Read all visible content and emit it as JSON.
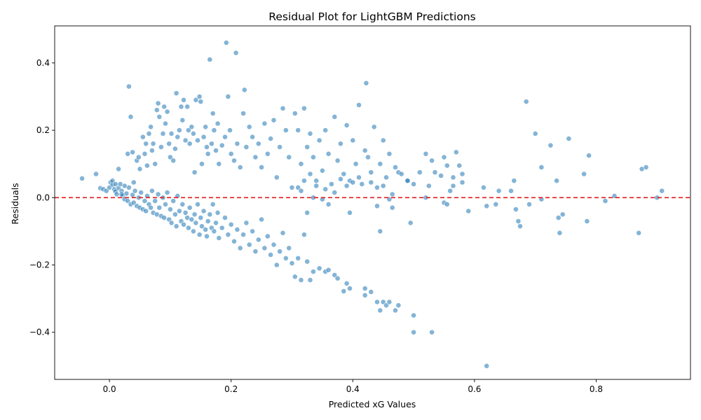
{
  "chart_data": {
    "type": "scatter",
    "title": "Residual Plot for LightGBM Predictions",
    "xlabel": "Predicted xG Values",
    "ylabel": "Residuals",
    "xlim": [
      -0.09,
      0.955
    ],
    "ylim": [
      -0.54,
      0.51
    ],
    "xticks": [
      0.0,
      0.2,
      0.4,
      0.6,
      0.8
    ],
    "xtick_labels": [
      "0.0",
      "0.2",
      "0.4",
      "0.6",
      "0.8"
    ],
    "yticks": [
      -0.4,
      -0.2,
      0.0,
      0.2,
      0.4
    ],
    "ytick_labels": [
      "−0.4",
      "−0.2",
      "0.0",
      "0.2",
      "0.4"
    ],
    "reference_line": {
      "y": 0.0,
      "color": "#e31a1c",
      "style": "dashed"
    },
    "point_color": "#1f77b4",
    "grid": false,
    "legend": "none",
    "points": [
      [
        -0.045,
        0.057
      ],
      [
        -0.022,
        0.07
      ],
      [
        -0.015,
        0.028
      ],
      [
        -0.01,
        0.025
      ],
      [
        -0.005,
        0.02
      ],
      [
        0.0,
        0.03
      ],
      [
        0.002,
        0.045
      ],
      [
        0.005,
        0.038
      ],
      [
        0.008,
        0.025
      ],
      [
        0.01,
        0.018
      ],
      [
        0.012,
        0.01
      ],
      [
        0.015,
        0.028
      ],
      [
        0.018,
        0.04
      ],
      [
        0.02,
        0.02
      ],
      [
        0.022,
        0.005
      ],
      [
        0.025,
        -0.005
      ],
      [
        0.028,
        0.012
      ],
      [
        0.03,
        -0.01
      ],
      [
        0.032,
        0.03
      ],
      [
        0.035,
        -0.02
      ],
      [
        0.038,
        0.008
      ],
      [
        0.04,
        -0.015
      ],
      [
        0.042,
        0.02
      ],
      [
        0.045,
        -0.025
      ],
      [
        0.048,
        0.0
      ],
      [
        0.05,
        -0.03
      ],
      [
        0.052,
        0.015
      ],
      [
        0.055,
        -0.035
      ],
      [
        0.058,
        -0.01
      ],
      [
        0.06,
        -0.04
      ],
      [
        0.062,
        0.005
      ],
      [
        0.065,
        -0.02
      ],
      [
        0.068,
        -0.03
      ],
      [
        0.07,
        0.02
      ],
      [
        0.072,
        -0.045
      ],
      [
        0.075,
        -0.01
      ],
      [
        0.078,
        -0.05
      ],
      [
        0.08,
        0.01
      ],
      [
        0.082,
        -0.03
      ],
      [
        0.085,
        -0.055
      ],
      [
        0.088,
        0.0
      ],
      [
        0.09,
        -0.06
      ],
      [
        0.092,
        -0.02
      ],
      [
        0.095,
        0.015
      ],
      [
        0.098,
        -0.065
      ],
      [
        0.1,
        -0.035
      ],
      [
        0.102,
        -0.075
      ],
      [
        0.105,
        -0.01
      ],
      [
        0.108,
        -0.05
      ],
      [
        0.11,
        -0.085
      ],
      [
        0.112,
        0.005
      ],
      [
        0.115,
        -0.04
      ],
      [
        0.118,
        -0.07
      ],
      [
        0.12,
        -0.02
      ],
      [
        0.122,
        -0.08
      ],
      [
        0.125,
        -0.045
      ],
      [
        0.128,
        -0.06
      ],
      [
        0.13,
        -0.09
      ],
      [
        0.132,
        -0.03
      ],
      [
        0.135,
        -0.065
      ],
      [
        0.138,
        -0.1
      ],
      [
        0.14,
        -0.05
      ],
      [
        0.142,
        -0.075
      ],
      [
        0.145,
        -0.02
      ],
      [
        0.148,
        -0.11
      ],
      [
        0.15,
        -0.06
      ],
      [
        0.152,
        -0.085
      ],
      [
        0.155,
        -0.04
      ],
      [
        0.158,
        -0.095
      ],
      [
        0.16,
        -0.115
      ],
      [
        0.162,
        -0.07
      ],
      [
        0.165,
        -0.05
      ],
      [
        0.168,
        -0.09
      ],
      [
        0.17,
        -0.02
      ],
      [
        0.172,
        -0.1
      ],
      [
        0.175,
        -0.075
      ],
      [
        0.178,
        -0.045
      ],
      [
        0.18,
        -0.12
      ],
      [
        0.185,
        -0.09
      ],
      [
        0.19,
        -0.06
      ],
      [
        0.195,
        -0.11
      ],
      [
        0.2,
        -0.08
      ],
      [
        0.205,
        -0.13
      ],
      [
        0.21,
        -0.095
      ],
      [
        0.215,
        -0.15
      ],
      [
        0.22,
        -0.11
      ],
      [
        0.225,
        -0.075
      ],
      [
        0.23,
        -0.14
      ],
      [
        0.235,
        -0.1
      ],
      [
        0.24,
        -0.16
      ],
      [
        0.245,
        -0.125
      ],
      [
        0.25,
        -0.065
      ],
      [
        0.255,
        -0.15
      ],
      [
        0.26,
        -0.115
      ],
      [
        0.265,
        -0.17
      ],
      [
        0.27,
        -0.14
      ],
      [
        0.275,
        -0.2
      ],
      [
        0.28,
        -0.16
      ],
      [
        0.285,
        -0.105
      ],
      [
        0.29,
        -0.18
      ],
      [
        0.295,
        -0.15
      ],
      [
        0.3,
        -0.195
      ],
      [
        0.305,
        -0.235
      ],
      [
        0.31,
        -0.18
      ],
      [
        0.315,
        -0.245
      ],
      [
        0.32,
        -0.11
      ],
      [
        0.325,
        -0.19
      ],
      [
        0.33,
        -0.245
      ],
      [
        0.335,
        -0.22
      ],
      [
        0.345,
        -0.21
      ],
      [
        0.355,
        -0.22
      ],
      [
        0.36,
        -0.215
      ],
      [
        0.37,
        -0.23
      ],
      [
        0.375,
        -0.24
      ],
      [
        0.385,
        -0.278
      ],
      [
        0.39,
        -0.255
      ],
      [
        0.395,
        -0.27
      ],
      [
        0.42,
        -0.27
      ],
      [
        0.42,
        -0.29
      ],
      [
        0.43,
        -0.28
      ],
      [
        0.44,
        -0.31
      ],
      [
        0.445,
        -0.335
      ],
      [
        0.45,
        -0.31
      ],
      [
        0.455,
        -0.32
      ],
      [
        0.46,
        -0.31
      ],
      [
        0.47,
        -0.335
      ],
      [
        0.475,
        -0.32
      ],
      [
        0.5,
        -0.35
      ],
      [
        0.5,
        -0.4
      ],
      [
        0.53,
        -0.4
      ],
      [
        0.62,
        -0.5
      ],
      [
        0.005,
        0.05
      ],
      [
        0.01,
        0.04
      ],
      [
        0.015,
        0.085
      ],
      [
        0.02,
        0.01
      ],
      [
        0.025,
        0.035
      ],
      [
        0.03,
        0.13
      ],
      [
        0.032,
        0.33
      ],
      [
        0.035,
        0.24
      ],
      [
        0.038,
        0.135
      ],
      [
        0.04,
        0.045
      ],
      [
        0.045,
        0.11
      ],
      [
        0.048,
        0.12
      ],
      [
        0.05,
        0.085
      ],
      [
        0.055,
        0.18
      ],
      [
        0.058,
        0.13
      ],
      [
        0.06,
        0.16
      ],
      [
        0.062,
        0.095
      ],
      [
        0.065,
        0.19
      ],
      [
        0.068,
        0.21
      ],
      [
        0.07,
        0.14
      ],
      [
        0.072,
        0.16
      ],
      [
        0.075,
        0.1
      ],
      [
        0.078,
        0.26
      ],
      [
        0.08,
        0.28
      ],
      [
        0.082,
        0.24
      ],
      [
        0.085,
        0.15
      ],
      [
        0.088,
        0.19
      ],
      [
        0.09,
        0.27
      ],
      [
        0.092,
        0.22
      ],
      [
        0.095,
        0.255
      ],
      [
        0.098,
        0.16
      ],
      [
        0.1,
        0.12
      ],
      [
        0.102,
        0.19
      ],
      [
        0.105,
        0.11
      ],
      [
        0.108,
        0.145
      ],
      [
        0.11,
        0.31
      ],
      [
        0.112,
        0.18
      ],
      [
        0.115,
        0.2
      ],
      [
        0.118,
        0.27
      ],
      [
        0.12,
        0.23
      ],
      [
        0.122,
        0.29
      ],
      [
        0.125,
        0.17
      ],
      [
        0.128,
        0.27
      ],
      [
        0.13,
        0.2
      ],
      [
        0.132,
        0.16
      ],
      [
        0.135,
        0.21
      ],
      [
        0.138,
        0.19
      ],
      [
        0.14,
        0.075
      ],
      [
        0.142,
        0.29
      ],
      [
        0.145,
        0.17
      ],
      [
        0.148,
        0.3
      ],
      [
        0.15,
        0.285
      ],
      [
        0.152,
        0.1
      ],
      [
        0.155,
        0.18
      ],
      [
        0.158,
        0.21
      ],
      [
        0.16,
        0.15
      ],
      [
        0.162,
        0.13
      ],
      [
        0.165,
        0.41
      ],
      [
        0.168,
        0.16
      ],
      [
        0.17,
        0.25
      ],
      [
        0.172,
        0.2
      ],
      [
        0.175,
        0.14
      ],
      [
        0.178,
        0.22
      ],
      [
        0.18,
        0.1
      ],
      [
        0.185,
        0.155
      ],
      [
        0.19,
        0.18
      ],
      [
        0.192,
        0.46
      ],
      [
        0.195,
        0.3
      ],
      [
        0.198,
        0.2
      ],
      [
        0.2,
        0.13
      ],
      [
        0.205,
        0.11
      ],
      [
        0.208,
        0.43
      ],
      [
        0.21,
        0.16
      ],
      [
        0.215,
        0.09
      ],
      [
        0.22,
        0.25
      ],
      [
        0.222,
        0.32
      ],
      [
        0.225,
        0.15
      ],
      [
        0.23,
        0.21
      ],
      [
        0.235,
        0.18
      ],
      [
        0.24,
        0.12
      ],
      [
        0.245,
        0.16
      ],
      [
        0.25,
        0.09
      ],
      [
        0.255,
        0.22
      ],
      [
        0.26,
        0.13
      ],
      [
        0.265,
        0.175
      ],
      [
        0.27,
        0.23
      ],
      [
        0.275,
        0.06
      ],
      [
        0.28,
        0.15
      ],
      [
        0.285,
        0.265
      ],
      [
        0.29,
        0.2
      ],
      [
        0.295,
        0.12
      ],
      [
        0.3,
        0.03
      ],
      [
        0.305,
        0.25
      ],
      [
        0.31,
        0.2
      ],
      [
        0.315,
        0.1
      ],
      [
        0.32,
        0.265
      ],
      [
        0.325,
        0.15
      ],
      [
        0.33,
        0.19
      ],
      [
        0.335,
        0.12
      ],
      [
        0.34,
        0.05
      ],
      [
        0.345,
        0.17
      ],
      [
        0.35,
        0.08
      ],
      [
        0.355,
        0.2
      ],
      [
        0.36,
        0.13
      ],
      [
        0.365,
        0.04
      ],
      [
        0.37,
        0.24
      ],
      [
        0.375,
        0.11
      ],
      [
        0.38,
        0.16
      ],
      [
        0.385,
        0.07
      ],
      [
        0.39,
        0.215
      ],
      [
        0.395,
        0.05
      ],
      [
        0.4,
        0.17
      ],
      [
        0.405,
        0.1
      ],
      [
        0.41,
        0.275
      ],
      [
        0.415,
        0.04
      ],
      [
        0.42,
        0.14
      ],
      [
        0.422,
        0.34
      ],
      [
        0.425,
        0.12
      ],
      [
        0.43,
        0.075
      ],
      [
        0.435,
        0.21
      ],
      [
        0.44,
        0.03
      ],
      [
        0.445,
        0.1
      ],
      [
        0.45,
        0.17
      ],
      [
        0.455,
        0.06
      ],
      [
        0.46,
        0.13
      ],
      [
        0.465,
        0.01
      ],
      [
        0.47,
        0.09
      ],
      [
        0.475,
        0.075
      ],
      [
        0.48,
        0.07
      ],
      [
        0.49,
        0.05
      ],
      [
        0.5,
        0.04
      ],
      [
        0.51,
        0.075
      ],
      [
        0.52,
        0.13
      ],
      [
        0.53,
        0.11
      ],
      [
        0.535,
        0.075
      ],
      [
        0.545,
        0.065
      ],
      [
        0.55,
        0.12
      ],
      [
        0.555,
        0.095
      ],
      [
        0.56,
        0.02
      ],
      [
        0.565,
        0.035
      ],
      [
        0.57,
        0.135
      ],
      [
        0.575,
        0.095
      ],
      [
        0.58,
        0.07
      ],
      [
        0.58,
        0.045
      ],
      [
        0.59,
        -0.04
      ],
      [
        0.615,
        0.03
      ],
      [
        0.62,
        -0.025
      ],
      [
        0.635,
        -0.02
      ],
      [
        0.64,
        0.02
      ],
      [
        0.66,
        0.02
      ],
      [
        0.665,
        0.05
      ],
      [
        0.668,
        -0.035
      ],
      [
        0.672,
        -0.07
      ],
      [
        0.675,
        -0.085
      ],
      [
        0.685,
        0.285
      ],
      [
        0.69,
        -0.02
      ],
      [
        0.7,
        0.19
      ],
      [
        0.71,
        -0.005
      ],
      [
        0.71,
        0.09
      ],
      [
        0.725,
        0.155
      ],
      [
        0.735,
        0.05
      ],
      [
        0.738,
        -0.06
      ],
      [
        0.74,
        -0.105
      ],
      [
        0.745,
        -0.05
      ],
      [
        0.755,
        0.175
      ],
      [
        0.78,
        0.07
      ],
      [
        0.785,
        -0.07
      ],
      [
        0.788,
        0.125
      ],
      [
        0.815,
        -0.01
      ],
      [
        0.83,
        0.005
      ],
      [
        0.87,
        -0.105
      ],
      [
        0.875,
        0.085
      ],
      [
        0.882,
        0.09
      ],
      [
        0.9,
        0.0
      ],
      [
        0.908,
        0.02
      ],
      [
        0.31,
        0.03
      ],
      [
        0.315,
        0.02
      ],
      [
        0.32,
        0.05
      ],
      [
        0.325,
        -0.045
      ],
      [
        0.33,
        0.07
      ],
      [
        0.335,
        0.0
      ],
      [
        0.34,
        0.035
      ],
      [
        0.35,
        -0.005
      ],
      [
        0.355,
        0.025
      ],
      [
        0.36,
        -0.02
      ],
      [
        0.37,
        0.015
      ],
      [
        0.38,
        0.055
      ],
      [
        0.39,
        0.035
      ],
      [
        0.395,
        -0.045
      ],
      [
        0.4,
        0.045
      ],
      [
        0.41,
        0.06
      ],
      [
        0.43,
        0.045
      ],
      [
        0.44,
        -0.025
      ],
      [
        0.445,
        -0.1
      ],
      [
        0.45,
        0.035
      ],
      [
        0.46,
        -0.005
      ],
      [
        0.465,
        -0.03
      ],
      [
        0.49,
        0.05
      ],
      [
        0.495,
        -0.075
      ],
      [
        0.52,
        0.0
      ],
      [
        0.525,
        0.035
      ],
      [
        0.55,
        -0.015
      ],
      [
        0.555,
        -0.02
      ],
      [
        0.565,
        0.06
      ]
    ]
  }
}
